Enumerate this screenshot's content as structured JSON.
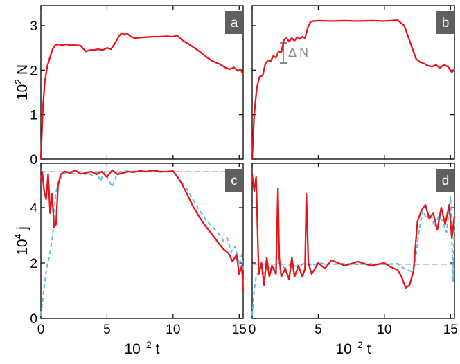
{
  "colors": {
    "series_red": "#e8141a",
    "series_blue": "#5bbde0",
    "reference_line": "#aaaaaa",
    "annotation": "#8a8a8a",
    "badge_bg": "#606060",
    "badge_text": "#ffffff"
  },
  "chart_data": [
    {
      "type": "line",
      "panel": "a",
      "ylabel": "10^2 N",
      "xlim": [
        0,
        15.3
      ],
      "ylim": [
        0,
        3.45
      ],
      "xticks": [
        0,
        5,
        10,
        15
      ],
      "yticks": [
        0,
        1,
        2,
        3
      ],
      "ytick_labels": [
        "0",
        "1",
        "2",
        "3"
      ],
      "show_x_ticklabels": false,
      "series": [
        {
          "color": "red",
          "style": "solid",
          "x": [
            0,
            0.15,
            0.3,
            0.5,
            0.7,
            0.9,
            1.1,
            1.3,
            1.6,
            1.9,
            2.2,
            2.6,
            3.0,
            3.4,
            3.7,
            4.0,
            4.3,
            4.7,
            5.0,
            5.3,
            5.6,
            5.9,
            6.1,
            6.3,
            6.5,
            6.8,
            7.1,
            7.5,
            8.0,
            8.5,
            9.0,
            9.5,
            10.0,
            10.3,
            10.7,
            11.0,
            11.5,
            12.0,
            12.5,
            13.0,
            13.5,
            14.0,
            14.3,
            14.6,
            14.9,
            15.1,
            15.3
          ],
          "y": [
            0,
            1.15,
            1.75,
            2.1,
            2.3,
            2.48,
            2.56,
            2.58,
            2.56,
            2.58,
            2.56,
            2.56,
            2.55,
            2.42,
            2.45,
            2.45,
            2.47,
            2.45,
            2.5,
            2.47,
            2.6,
            2.76,
            2.83,
            2.8,
            2.83,
            2.75,
            2.72,
            2.73,
            2.74,
            2.75,
            2.75,
            2.76,
            2.75,
            2.78,
            2.67,
            2.62,
            2.52,
            2.42,
            2.3,
            2.2,
            2.14,
            2.05,
            2.02,
            2.06,
            1.98,
            2.02,
            1.9
          ]
        }
      ]
    },
    {
      "type": "line",
      "panel": "b",
      "xlim": [
        0,
        15.3
      ],
      "ylim": [
        0,
        3.45
      ],
      "xticks": [
        0,
        5,
        10,
        15
      ],
      "yticks": [
        0,
        1,
        2,
        3
      ],
      "show_x_ticklabels": false,
      "show_y_ticklabels": false,
      "annotations": [
        {
          "text": "Δ N",
          "x": 2.55,
          "y_low": 2.18,
          "y_high": 2.7
        }
      ],
      "series": [
        {
          "color": "red",
          "style": "solid",
          "x": [
            0,
            0.15,
            0.35,
            0.55,
            0.8,
            1.0,
            1.2,
            1.4,
            1.6,
            1.8,
            2.0,
            2.2,
            2.4,
            2.6,
            2.8,
            3.0,
            3.2,
            3.4,
            3.6,
            3.8,
            4.0,
            4.2,
            4.4,
            4.6,
            5.0,
            6.0,
            7.0,
            8.0,
            9.0,
            10.0,
            11.0,
            11.5,
            11.8,
            12.1,
            12.4,
            12.7,
            13.0,
            13.3,
            13.6,
            13.9,
            14.2,
            14.5,
            14.8,
            15.1,
            15.3
          ],
          "y": [
            0,
            1.0,
            1.6,
            1.85,
            1.88,
            2.15,
            2.22,
            2.2,
            2.32,
            2.28,
            2.42,
            2.4,
            2.68,
            2.72,
            2.64,
            2.72,
            2.66,
            2.74,
            2.7,
            2.75,
            2.72,
            2.95,
            3.08,
            3.1,
            3.11,
            3.1,
            3.11,
            3.1,
            3.11,
            3.1,
            3.12,
            3.0,
            2.75,
            2.5,
            2.25,
            2.18,
            2.15,
            2.1,
            2.08,
            2.12,
            2.05,
            2.12,
            2.08,
            1.95,
            2.02
          ]
        }
      ]
    },
    {
      "type": "line",
      "panel": "c",
      "ylabel": "10^4 j",
      "xlabel": "10^-2 t",
      "xlim": [
        0,
        15.3
      ],
      "ylim": [
        0,
        5.6
      ],
      "xticks": [
        0,
        5,
        10,
        15
      ],
      "xtick_labels": [
        "0",
        "5",
        "10",
        "15"
      ],
      "yticks": [
        0,
        2,
        4
      ],
      "ytick_labels": [
        "0",
        "2",
        "4"
      ],
      "reference_y": 5.3,
      "series": [
        {
          "color": "blue",
          "style": "dashed",
          "x": [
            0,
            0.2,
            0.4,
            0.7,
            0.9,
            1.1,
            1.3,
            1.6,
            2.0,
            2.5,
            3.0,
            3.3,
            3.6,
            3.9,
            4.2,
            4.5,
            4.8,
            5.1,
            5.4,
            5.7,
            6.0,
            6.5,
            7.0,
            7.5,
            8.0,
            8.5,
            9.0,
            9.5,
            10.0,
            10.5,
            11.0,
            11.5,
            12.0,
            12.5,
            13.0,
            13.4,
            13.8,
            14.1,
            14.4,
            14.7,
            15.0,
            15.2,
            15.3
          ],
          "y": [
            0.1,
            0.9,
            1.7,
            2.4,
            3.0,
            4.4,
            4.9,
            5.15,
            5.3,
            5.22,
            5.3,
            5.2,
            5.25,
            5.15,
            5.3,
            4.95,
            5.3,
            5.0,
            4.75,
            5.15,
            5.3,
            5.32,
            5.3,
            5.35,
            5.3,
            5.32,
            5.28,
            5.3,
            5.3,
            5.0,
            4.7,
            4.3,
            3.9,
            3.55,
            3.3,
            3.1,
            2.8,
            2.9,
            2.4,
            2.6,
            1.95,
            2.3,
            1.7
          ]
        },
        {
          "color": "red",
          "style": "solid",
          "x": [
            0,
            0.1,
            0.25,
            0.4,
            0.55,
            0.7,
            0.85,
            1.0,
            1.15,
            1.3,
            1.5,
            1.8,
            2.2,
            2.6,
            3.0,
            3.4,
            3.8,
            4.2,
            4.6,
            5.0,
            5.4,
            5.8,
            6.2,
            6.6,
            7.0,
            7.5,
            8.0,
            8.5,
            9.0,
            9.5,
            10.0,
            10.5,
            11.0,
            11.5,
            12.0,
            12.5,
            13.0,
            13.4,
            13.8,
            14.2,
            14.5,
            14.8,
            15.0,
            15.2,
            15.3
          ],
          "y": [
            5.0,
            5.3,
            4.6,
            4.3,
            5.2,
            3.8,
            4.5,
            3.3,
            3.4,
            4.8,
            5.2,
            5.3,
            5.25,
            5.35,
            5.22,
            5.25,
            5.3,
            5.2,
            5.3,
            5.1,
            5.35,
            5.2,
            5.25,
            5.3,
            5.28,
            5.32,
            5.3,
            5.35,
            5.3,
            5.3,
            5.32,
            5.0,
            4.55,
            4.05,
            3.65,
            3.3,
            3.0,
            2.75,
            2.5,
            2.35,
            2.05,
            2.3,
            1.6,
            1.9,
            1.0
          ]
        }
      ]
    },
    {
      "type": "line",
      "panel": "d",
      "xlabel": "10^-2 t",
      "xlim": [
        0,
        15.3
      ],
      "ylim": [
        0,
        5.6
      ],
      "xticks": [
        0,
        5,
        10,
        15
      ],
      "xtick_labels": [
        "0",
        "5",
        "10",
        "15"
      ],
      "yticks": [
        0,
        2,
        4
      ],
      "show_y_ticklabels": false,
      "reference_y": 1.95,
      "series": [
        {
          "color": "blue",
          "style": "dashed",
          "x": [
            0,
            0.15,
            0.3,
            0.5,
            0.8,
            1.2,
            1.6,
            2.0,
            2.5,
            3.0,
            3.5,
            4.0,
            4.5,
            5.0,
            6.0,
            7.0,
            8.0,
            9.0,
            10.0,
            11.0,
            11.5,
            12.0,
            12.3,
            12.6,
            12.9,
            13.2,
            13.5,
            13.8,
            14.1,
            14.4,
            14.7,
            15.0,
            15.2,
            15.3
          ],
          "y": [
            0.1,
            1.0,
            1.5,
            1.7,
            1.6,
            1.9,
            1.7,
            2.0,
            1.8,
            1.95,
            1.85,
            2.0,
            1.9,
            2.0,
            1.95,
            1.98,
            1.95,
            1.97,
            1.95,
            1.98,
            1.8,
            1.7,
            1.9,
            3.1,
            3.9,
            3.6,
            3.8,
            3.3,
            3.7,
            3.5,
            3.1,
            4.4,
            1.3,
            3.8
          ]
        },
        {
          "color": "red",
          "style": "solid",
          "x": [
            0,
            0.15,
            0.3,
            0.5,
            0.7,
            0.9,
            1.1,
            1.3,
            1.5,
            1.8,
            1.95,
            2.05,
            2.2,
            2.5,
            2.8,
            3.0,
            3.2,
            3.5,
            3.8,
            4.0,
            4.1,
            4.25,
            4.5,
            5.0,
            5.5,
            6.0,
            7.0,
            8.0,
            9.0,
            10.0,
            10.5,
            11.0,
            11.3,
            11.6,
            11.9,
            12.2,
            12.5,
            12.8,
            13.1,
            13.4,
            13.7,
            14.0,
            14.3,
            14.6,
            14.9,
            15.1,
            15.3
          ],
          "y": [
            5.2,
            4.6,
            5.1,
            1.6,
            2.0,
            1.2,
            2.2,
            1.5,
            1.9,
            1.6,
            4.7,
            2.2,
            1.5,
            1.8,
            1.4,
            2.2,
            1.5,
            1.9,
            1.5,
            1.8,
            4.5,
            2.0,
            1.6,
            2.0,
            1.8,
            2.1,
            1.9,
            2.05,
            1.9,
            2.0,
            1.85,
            1.75,
            1.5,
            1.1,
            1.2,
            1.7,
            3.5,
            3.9,
            4.1,
            3.6,
            3.8,
            3.2,
            4.0,
            3.4,
            4.1,
            2.9,
            3.7
          ]
        }
      ]
    }
  ]
}
